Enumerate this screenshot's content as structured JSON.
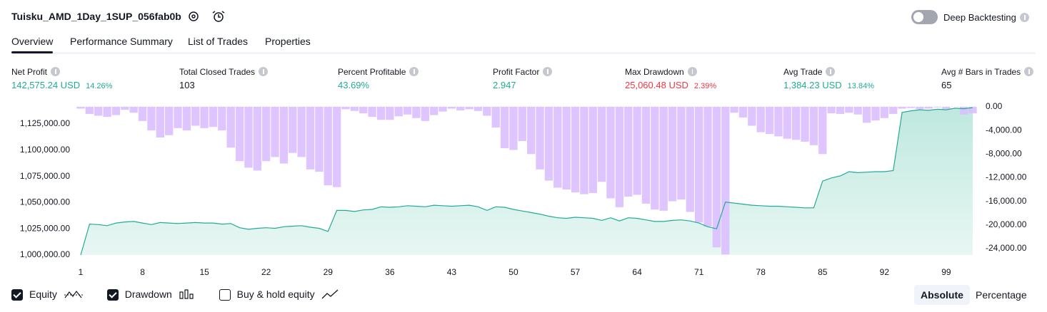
{
  "header": {
    "title": "Tuisku_AMD_1Day_1SUP_056fab0b",
    "toggle": {
      "label": "Deep Backtesting",
      "on": false
    }
  },
  "tabs": {
    "items": [
      "Overview",
      "Performance Summary",
      "List of Trades",
      "Properties"
    ],
    "active": 0
  },
  "metrics": [
    {
      "label": "Net Profit",
      "value": "142,575.24 USD",
      "sub": "14.26%",
      "color": "#22ab94"
    },
    {
      "label": "Total Closed Trades",
      "value": "103",
      "color": "#131722"
    },
    {
      "label": "Percent Profitable",
      "value": "43.69%",
      "color": "#22ab94"
    },
    {
      "label": "Profit Factor",
      "value": "2.947",
      "color": "#22ab94"
    },
    {
      "label": "Max Drawdown",
      "value": "25,060.48 USD",
      "sub": "2.39%",
      "color": "#f23645"
    },
    {
      "label": "Avg Trade",
      "value": "1,384.23 USD",
      "sub": "13.84%",
      "color": "#22ab94"
    },
    {
      "label": "Avg # Bars in Trades",
      "value": "65",
      "color": "#131722"
    }
  ],
  "chart_data": {
    "type": "equity",
    "x": [
      1,
      2,
      3,
      4,
      5,
      6,
      7,
      8,
      9,
      10,
      11,
      12,
      13,
      14,
      15,
      16,
      17,
      18,
      19,
      20,
      21,
      22,
      23,
      24,
      25,
      26,
      27,
      28,
      29,
      30,
      31,
      32,
      33,
      34,
      35,
      36,
      37,
      38,
      39,
      40,
      41,
      42,
      43,
      44,
      45,
      46,
      47,
      48,
      49,
      50,
      51,
      52,
      53,
      54,
      55,
      56,
      57,
      58,
      59,
      60,
      61,
      62,
      63,
      64,
      65,
      66,
      67,
      68,
      69,
      70,
      71,
      72,
      73,
      74,
      75,
      76,
      77,
      78,
      79,
      80,
      81,
      82,
      83,
      84,
      85,
      86,
      87,
      88,
      89,
      90,
      91,
      92,
      93,
      94,
      95,
      96,
      97,
      98,
      99,
      100,
      101,
      102
    ],
    "xlim": [
      1,
      102
    ],
    "xticks": [
      1,
      8,
      15,
      22,
      29,
      36,
      43,
      50,
      57,
      64,
      71,
      78,
      85,
      92,
      99
    ],
    "ylim": [
      1000000,
      1141300
    ],
    "yticks": [
      {
        "value": 1000000,
        "label": "1,000,000.00"
      },
      {
        "value": 1025000,
        "label": "1,025,000.00"
      },
      {
        "value": 1050000,
        "label": "1,050,000.00"
      },
      {
        "value": 1075000,
        "label": "1,075,000.00"
      },
      {
        "value": 1100000,
        "label": "1,100,000.00"
      },
      {
        "value": 1125000,
        "label": "1,125,000.00"
      }
    ],
    "y2lim": [
      -25100,
      0
    ],
    "y2ticks": [
      {
        "value": 0,
        "label": "0.00"
      },
      {
        "value": -4000,
        "label": "-4,000.00"
      },
      {
        "value": -8000,
        "label": "-8,000.00"
      },
      {
        "value": -12000,
        "label": "-12,000.00"
      },
      {
        "value": -16000,
        "label": "-16,000.00"
      },
      {
        "value": -20000,
        "label": "-20,000.00"
      },
      {
        "value": -24000,
        "label": "-24,000.00"
      }
    ],
    "series": [
      {
        "name": "Equity",
        "checked": true,
        "color": "#22ab94",
        "fill": "#d5f0ea",
        "values": [
          1000000,
          1029500,
          1029000,
          1028000,
          1030500,
          1031500,
          1032000,
          1030500,
          1029000,
          1031000,
          1030500,
          1030000,
          1030500,
          1031000,
          1030500,
          1030500,
          1029500,
          1030000,
          1026000,
          1024500,
          1025500,
          1026000,
          1025500,
          1027000,
          1027500,
          1028000,
          1026500,
          1025500,
          1022500,
          1042500,
          1042500,
          1041500,
          1043000,
          1043500,
          1046000,
          1045500,
          1046000,
          1047000,
          1046500,
          1046000,
          1047500,
          1047000,
          1046500,
          1047000,
          1047500,
          1046000,
          1042500,
          1046000,
          1045500,
          1043500,
          1042000,
          1040500,
          1039000,
          1037000,
          1035500,
          1035000,
          1036000,
          1035500,
          1035000,
          1033000,
          1035500,
          1032500,
          1035500,
          1035000,
          1033500,
          1032000,
          1032000,
          1033000,
          1033500,
          1032500,
          1030500,
          1027000,
          1025000,
          1050500,
          1049500,
          1048500,
          1047500,
          1047000,
          1046500,
          1046500,
          1046000,
          1045500,
          1045000,
          1045000,
          1070500,
          1073500,
          1075500,
          1079500,
          1078500,
          1079000,
          1079500,
          1079500,
          1080500,
          1136000,
          1137500,
          1138500,
          1138000,
          1139000,
          1138500,
          1140000,
          1139500,
          1140500
        ]
      },
      {
        "name": "Drawdown",
        "checked": true,
        "axis": "y2",
        "color": "#dcbfff",
        "values": [
          -300,
          -1200,
          -1500,
          -1700,
          -1400,
          -500,
          -1000,
          -2400,
          -4000,
          -5200,
          -4800,
          -3600,
          -4000,
          -3200,
          -3600,
          -3400,
          -4000,
          -6900,
          -9200,
          -10300,
          -10800,
          -9200,
          -8500,
          -9600,
          -7800,
          -8500,
          -10600,
          -11000,
          -13300,
          -13600,
          -400,
          -700,
          -1100,
          -1700,
          -2200,
          -2200,
          -1600,
          -1300,
          -1900,
          -2400,
          -1400,
          -800,
          -300,
          -600,
          -400,
          -700,
          -1500,
          -3500,
          -7000,
          -7300,
          -5800,
          -8000,
          -10600,
          -12500,
          -13700,
          -14000,
          -14500,
          -14800,
          -14600,
          -12700,
          -15500,
          -17000,
          -15200,
          -14900,
          -16400,
          -17400,
          -17600,
          -16000,
          -15700,
          -17800,
          -19600,
          -20300,
          -23800,
          -25000,
          -1000,
          -1800,
          -3200,
          -4300,
          -4600,
          -5000,
          -5400,
          -5600,
          -5900,
          -6500,
          -8000,
          -1100,
          -1200,
          -1000,
          -1300,
          -2700,
          -2300,
          -1900,
          -1200,
          -300,
          -200,
          -400,
          -300,
          -100,
          -400,
          0,
          -1300,
          -1100
        ]
      }
    ],
    "buy_hold": {
      "name": "Buy & hold equity",
      "checked": false
    }
  },
  "modes": {
    "items": [
      "Absolute",
      "Percentage"
    ],
    "active": 0
  }
}
